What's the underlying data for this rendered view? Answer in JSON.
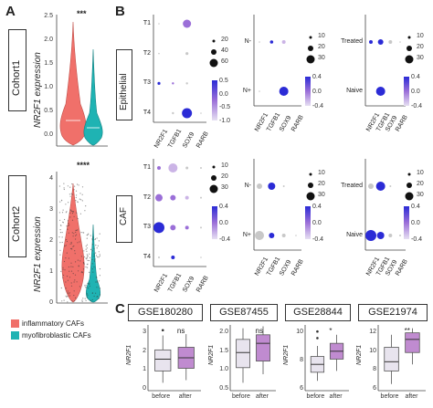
{
  "panel_a": {
    "label": "A",
    "cohort1": {
      "title": "Cohort1",
      "ylabel": "NR2F1 expression",
      "sig": "***",
      "ticks": [
        "2.5",
        "2.0",
        "1.5",
        "1.0",
        "0.5",
        "0.0"
      ]
    },
    "cohort2": {
      "title": "Cohort2",
      "ylabel": "NR2F1 expression",
      "sig": "****",
      "ticks": [
        "4",
        "3",
        "2",
        "1",
        "0"
      ]
    },
    "legend": [
      {
        "label": "inflammatory CAFs",
        "color": "#f0706a"
      },
      {
        "label": "myofibroblastic CAFs",
        "color": "#1fb3b3"
      }
    ]
  },
  "panel_b": {
    "label": "B",
    "epithelial": "Epithelial",
    "caf": "CAF",
    "genes": [
      "NR2F1",
      "TGFB1",
      "SOX9",
      "RARB"
    ],
    "t_rows": [
      "T1",
      "T2",
      "T3",
      "T4"
    ],
    "n_rows": [
      "N-",
      "N+"
    ],
    "tx_rows": [
      "Treated",
      "Naive"
    ],
    "size_legend_1": [
      "20",
      "40",
      "60"
    ],
    "size_legend_2": [
      "10",
      "20",
      "30"
    ],
    "color_ticks_epi_t": [
      "0.5",
      "0.0",
      "-0.5",
      "-1.0"
    ],
    "color_ticks_n": [
      "0.4",
      "0.0",
      "-0.4"
    ]
  },
  "panel_c": {
    "label": "C",
    "datasets": [
      {
        "title": "GSE180280",
        "ylabel": "NR2F1",
        "yticks": [
          "3",
          "2",
          "1",
          "0"
        ],
        "sig": "ns",
        "x": [
          "before",
          "after"
        ]
      },
      {
        "title": "GSE87455",
        "ylabel": "NR2F1",
        "yticks": [
          "2.0",
          "1.5",
          "1.0",
          "0.5"
        ],
        "sig": "ns",
        "x": [
          "before",
          "after"
        ]
      },
      {
        "title": "GSE28844",
        "ylabel": "NR2F1",
        "yticks": [
          "10",
          "8",
          "6"
        ],
        "sig": "*",
        "x": [
          "before",
          "after"
        ]
      },
      {
        "title": "GSE21974",
        "ylabel": "NR2F1",
        "yticks": [
          "12",
          "10",
          "8",
          "6"
        ],
        "sig": "**",
        "x": [
          "before",
          "after"
        ]
      }
    ]
  },
  "colors": {
    "before": "#e8e4ee",
    "after": "#c08bd0",
    "dot_blue": "#2b2bd6",
    "dot_purple": "#9b6fd8",
    "dot_grey": "#c8c8c8"
  }
}
